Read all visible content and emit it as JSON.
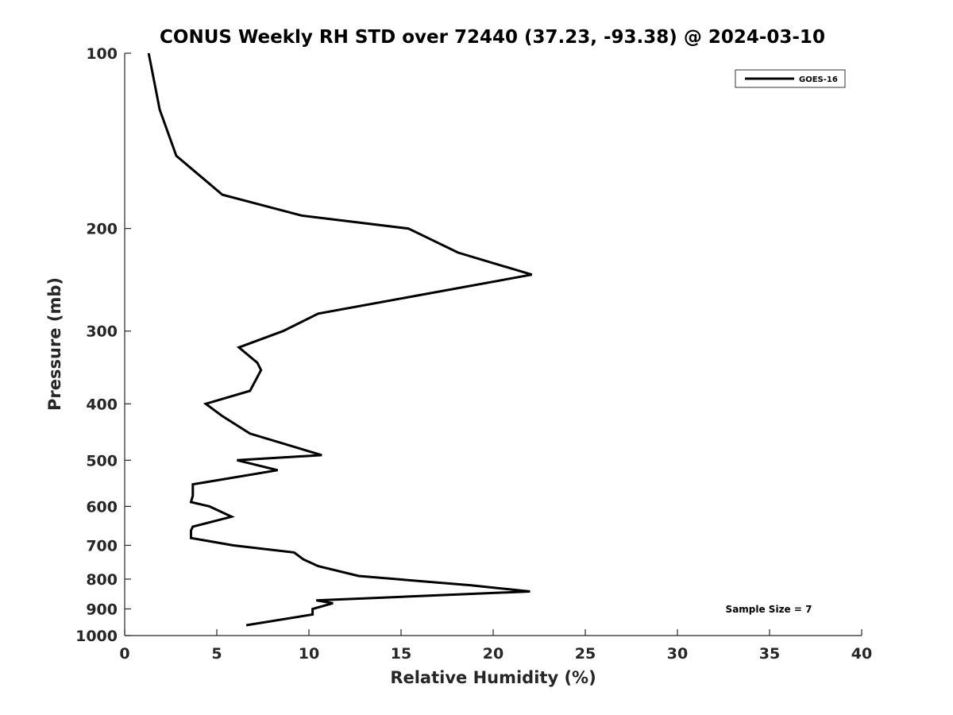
{
  "chart_data": {
    "type": "line",
    "title": "CONUS Weekly RH STD over 72440 (37.23, -93.38) @ 2024-03-10",
    "xlabel": "Relative Humidity (%)",
    "ylabel": "Pressure (mb)",
    "xlim": [
      0,
      40
    ],
    "ylim": [
      100,
      1000
    ],
    "yscale": "log",
    "y_reversed": true,
    "grid": false,
    "legend_position": "top-right",
    "xticks": [
      "0",
      "5",
      "10",
      "15",
      "20",
      "25",
      "30",
      "35",
      "40"
    ],
    "yticks": [
      "100",
      "200",
      "300",
      "400",
      "500",
      "600",
      "700",
      "800",
      "900",
      "1000"
    ],
    "annotation": "Sample Size = 7",
    "series": [
      {
        "name": "GOES-16",
        "color": "#000000",
        "points": [
          [
            1.3,
            100
          ],
          [
            1.9,
            125
          ],
          [
            2.8,
            150
          ],
          [
            5.3,
            175
          ],
          [
            9.6,
            190
          ],
          [
            15.4,
            200
          ],
          [
            18.1,
            220
          ],
          [
            22.1,
            240
          ],
          [
            10.5,
            280
          ],
          [
            8.6,
            300
          ],
          [
            6.2,
            320
          ],
          [
            7.2,
            340
          ],
          [
            7.4,
            350
          ],
          [
            6.8,
            380
          ],
          [
            4.4,
            400
          ],
          [
            5.3,
            420
          ],
          [
            6.8,
            450
          ],
          [
            10.7,
            490
          ],
          [
            6.1,
            500
          ],
          [
            8.3,
            520
          ],
          [
            3.7,
            550
          ],
          [
            3.7,
            575
          ],
          [
            3.6,
            590
          ],
          [
            4.6,
            600
          ],
          [
            5.8,
            625
          ],
          [
            3.7,
            650
          ],
          [
            3.6,
            660
          ],
          [
            3.6,
            680
          ],
          [
            5.9,
            700
          ],
          [
            9.2,
            720
          ],
          [
            9.7,
            740
          ],
          [
            10.5,
            760
          ],
          [
            12.7,
            790
          ],
          [
            18.8,
            820
          ],
          [
            22.0,
            840
          ],
          [
            10.4,
            870
          ],
          [
            11.3,
            880
          ],
          [
            10.2,
            900
          ],
          [
            10.2,
            920
          ],
          [
            6.6,
            960
          ]
        ]
      }
    ]
  }
}
